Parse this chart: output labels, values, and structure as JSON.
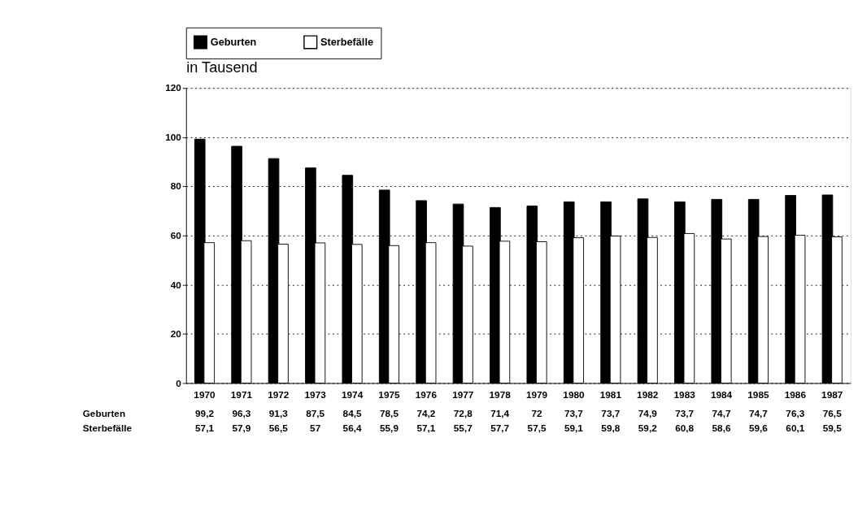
{
  "chart_data": {
    "type": "bar",
    "ylabel": "in Tausend",
    "categories": [
      "1970",
      "1971",
      "1972",
      "1973",
      "1974",
      "1975",
      "1976",
      "1977",
      "1978",
      "1979",
      "1980",
      "1981",
      "1982",
      "1983",
      "1984",
      "1985",
      "1986",
      "1987"
    ],
    "series": [
      {
        "name": "Geburten",
        "color": "#000000",
        "values": [
          99.2,
          96.3,
          91.3,
          87.5,
          84.5,
          78.5,
          74.2,
          72.8,
          71.4,
          72,
          73.7,
          73.7,
          74.9,
          73.7,
          74.7,
          74.7,
          76.3,
          76.5
        ],
        "value_labels": [
          "99,2",
          "96,3",
          "91,3",
          "87,5",
          "84,5",
          "78,5",
          "74,2",
          "72,8",
          "71,4",
          "72",
          "73,7",
          "73,7",
          "74,9",
          "73,7",
          "74,7",
          "74,7",
          "76,3",
          "76,5"
        ]
      },
      {
        "name": "Sterbefälle",
        "color": "#ffffff",
        "values": [
          57.1,
          57.9,
          56.5,
          57,
          56.4,
          55.9,
          57.1,
          55.7,
          57.7,
          57.5,
          59.1,
          59.8,
          59.2,
          60.8,
          58.6,
          59.6,
          60.1,
          59.5
        ],
        "value_labels": [
          "57,1",
          "57,9",
          "56,5",
          "57",
          "56,4",
          "55,9",
          "57,1",
          "55,7",
          "57,7",
          "57,5",
          "59,1",
          "59,8",
          "59,2",
          "60,8",
          "58,6",
          "59,6",
          "60,1",
          "59,5"
        ]
      }
    ],
    "ylim": [
      0,
      120
    ],
    "yticks": [
      0,
      20,
      40,
      60,
      80,
      100,
      120
    ],
    "grid": "y",
    "legend": "top"
  }
}
